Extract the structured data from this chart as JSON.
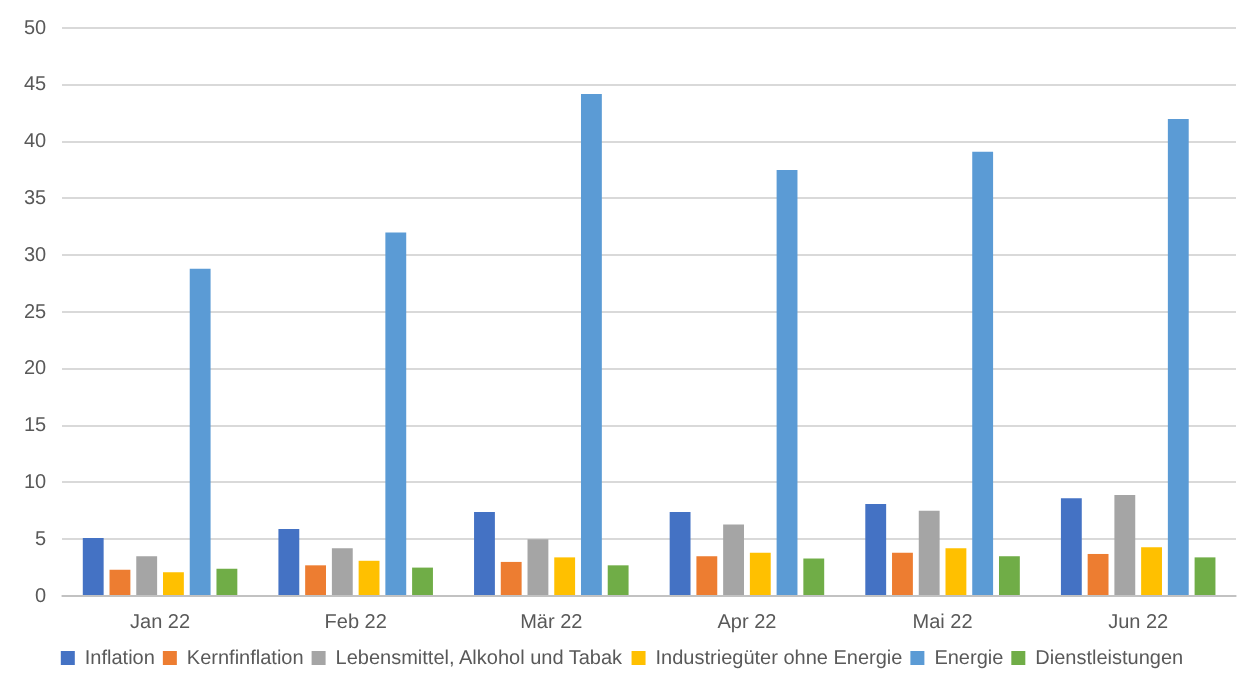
{
  "chart_data": {
    "type": "bar",
    "categories": [
      "Jan 22",
      "Feb 22",
      "Mär 22",
      "Apr 22",
      "Mai 22",
      "Jun 22"
    ],
    "series": [
      {
        "name": "Inflation",
        "color": "#4472c4",
        "values": [
          5.1,
          5.9,
          7.4,
          7.4,
          8.1,
          8.6
        ]
      },
      {
        "name": "Kernfinflation",
        "color": "#ed7d31",
        "values": [
          2.3,
          2.7,
          3.0,
          3.5,
          3.8,
          3.7
        ]
      },
      {
        "name": "Lebensmittel, Alkohol und Tabak",
        "color": "#a5a5a5",
        "values": [
          3.5,
          4.2,
          5.0,
          6.3,
          7.5,
          8.9
        ]
      },
      {
        "name": "Industriegüter ohne Energie",
        "color": "#ffc000",
        "values": [
          2.1,
          3.1,
          3.4,
          3.8,
          4.2,
          4.3
        ]
      },
      {
        "name": "Energie",
        "color": "#5b9bd5",
        "values": [
          28.8,
          32.0,
          44.2,
          37.5,
          39.1,
          42.0
        ]
      },
      {
        "name": "Dienstleistungen",
        "color": "#70ad47",
        "values": [
          2.4,
          2.5,
          2.7,
          3.3,
          3.5,
          3.4
        ]
      }
    ],
    "ylim": [
      0,
      50
    ],
    "yticks": [
      0,
      5,
      10,
      15,
      20,
      25,
      30,
      35,
      40,
      45,
      50
    ],
    "grid": "y",
    "legend": "bottom"
  }
}
